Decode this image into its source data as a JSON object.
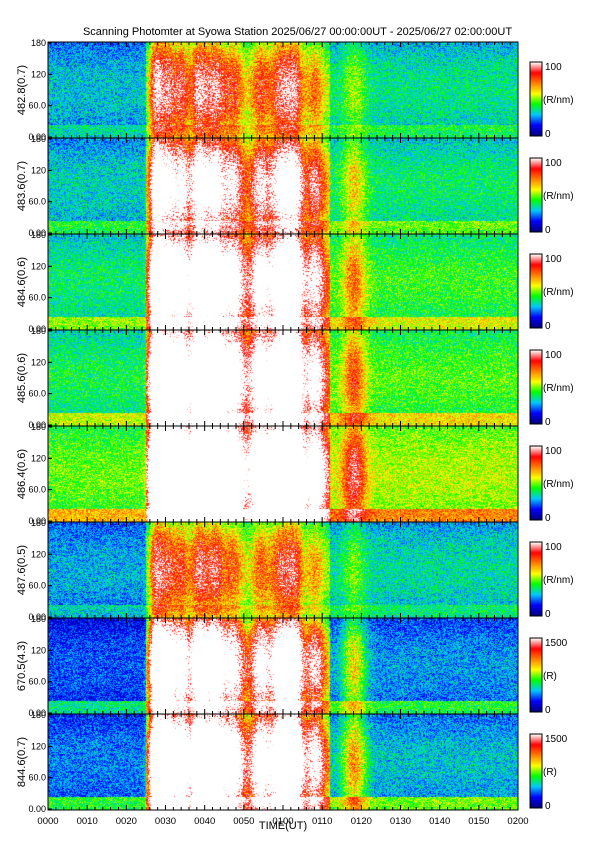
{
  "title": "Scanning Photomter at Syowa Station 2025/06/27 00:00:00UT - 2025/06/27 02:00:00UT",
  "chart_data": {
    "type": "heatmap",
    "title": "Scanning Photomter at Syowa Station 2025/06/27 00:00:00UT - 2025/06/27 02:00:00UT",
    "xlabel": "TIME(UT)",
    "x_ticks": [
      "0000",
      "0010",
      "0020",
      "0030",
      "0040",
      "0050",
      "0100",
      "0110",
      "0120",
      "0130",
      "0140",
      "0150",
      "0200"
    ],
    "xlim_minutes": [
      0,
      120
    ],
    "colormap": [
      "#00007a",
      "#0000ff",
      "#00c8ff",
      "#00ff00",
      "#ffff00",
      "#ff8000",
      "#ff0000",
      "#ffffff"
    ],
    "panels": [
      {
        "ylabel": "482.8(0.7)",
        "y_ticks": [
          "0.00",
          "60.0",
          "120",
          "180"
        ],
        "ylim": [
          0,
          180
        ],
        "colorbar_ticks": [
          "100",
          "0"
        ],
        "colorbar_label": "(R/nm)",
        "cmax": 100,
        "background": 0.28,
        "activity": 0.55
      },
      {
        "ylabel": "483.6(0.7)",
        "y_ticks": [
          "0.00",
          "60.0",
          "120",
          "180"
        ],
        "ylim": [
          0,
          180
        ],
        "colorbar_ticks": [
          "100",
          "0"
        ],
        "colorbar_label": "(R/nm)",
        "cmax": 100,
        "background": 0.3,
        "activity": 0.85
      },
      {
        "ylabel": "484.6(0.6)",
        "y_ticks": [
          "0.00",
          "60.0",
          "120",
          "180"
        ],
        "ylim": [
          0,
          180
        ],
        "colorbar_ticks": [
          "100",
          "0"
        ],
        "colorbar_label": "(R/nm)",
        "cmax": 100,
        "background": 0.36,
        "activity": 1.05
      },
      {
        "ylabel": "485.6(0.6)",
        "y_ticks": [
          "0.00",
          "60.0",
          "120",
          "180"
        ],
        "ylim": [
          0,
          180
        ],
        "colorbar_ticks": [
          "100",
          "0"
        ],
        "colorbar_label": "(R/nm)",
        "cmax": 100,
        "background": 0.38,
        "activity": 1.15
      },
      {
        "ylabel": "486.4(0.6)",
        "y_ticks": [
          "0.00",
          "60.0",
          "120",
          "180"
        ],
        "ylim": [
          0,
          180
        ],
        "colorbar_ticks": [
          "100",
          "0"
        ],
        "colorbar_label": "(R/nm)",
        "cmax": 100,
        "background": 0.46,
        "activity": 1.3
      },
      {
        "ylabel": "487.6(0.5)",
        "y_ticks": [
          "0.00",
          "60.0",
          "120",
          "180"
        ],
        "ylim": [
          0,
          180
        ],
        "colorbar_ticks": [
          "100",
          "0"
        ],
        "colorbar_label": "(R/nm)",
        "cmax": 100,
        "background": 0.26,
        "activity": 0.5
      },
      {
        "ylabel": "670.5(4.3)",
        "y_ticks": [
          "0.00",
          "60.0",
          "120",
          "180"
        ],
        "ylim": [
          0,
          180
        ],
        "colorbar_ticks": [
          "1500",
          "0"
        ],
        "colorbar_label": "(R)",
        "cmax": 1500,
        "background": 0.18,
        "activity": 1.2
      },
      {
        "ylabel": "844.6(0.7)",
        "y_ticks": [
          "0.00",
          "60.0",
          "120",
          "180"
        ],
        "ylim": [
          0,
          180
        ],
        "colorbar_ticks": [
          "1500",
          "0"
        ],
        "colorbar_label": "(R)",
        "cmax": 1500,
        "background": 0.22,
        "activity": 1.35
      }
    ]
  }
}
